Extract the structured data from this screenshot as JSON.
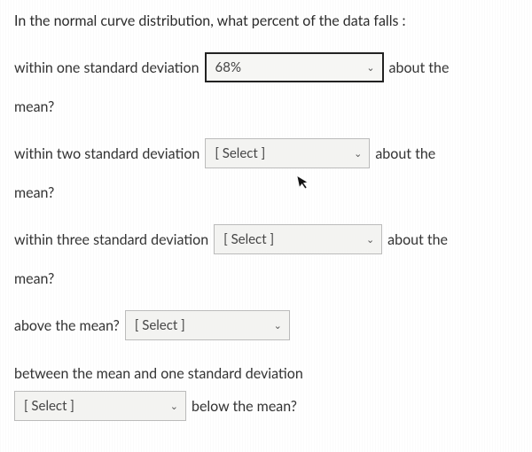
{
  "prompt": "In the normal curve distribution, what percent of the data falls :",
  "q1": {
    "before": "within one standard deviation",
    "selected": "68%",
    "after": "about the",
    "cont": "mean?"
  },
  "q2": {
    "before": "within two standard deviation",
    "selected": "[ Select ]",
    "after": "about the",
    "cont": "mean?"
  },
  "q3": {
    "before": "within three standard deviation",
    "selected": "[ Select ]",
    "after": "about the",
    "cont": "mean?"
  },
  "q4": {
    "before": "above the mean?",
    "selected": "[ Select ]"
  },
  "q5": {
    "before": "between the mean and one standard deviation",
    "selected": "[ Select ]",
    "after": "below the mean?"
  },
  "dropdown_widths": {
    "q1": "202px",
    "q2": "186px",
    "q3": "190px",
    "q4": "186px",
    "q5": "194px"
  },
  "colors": {
    "bg": "#ebebe9",
    "text": "#2b2b2b",
    "dropdown_bg": "#f3f3f1",
    "dropdown_border": "#777",
    "selected_border": "#222"
  }
}
